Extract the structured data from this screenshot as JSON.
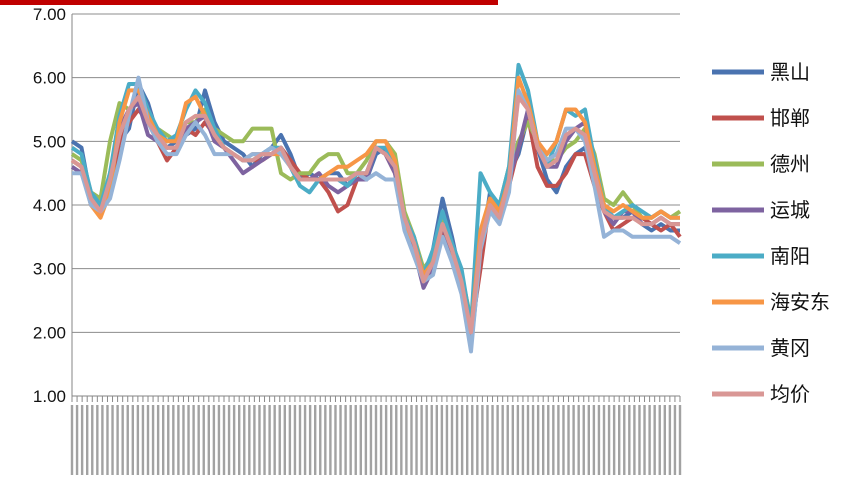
{
  "chart_data": {
    "type": "line",
    "title": "",
    "xlabel": "",
    "ylabel": "",
    "ylim": [
      1,
      7
    ],
    "y_ticks": [
      "1.00",
      "2.00",
      "3.00",
      "4.00",
      "5.00",
      "6.00",
      "7.00"
    ],
    "grid": "horizontal",
    "legend_position": "right",
    "x_tick_labels_note": "dense rotated date labels (illegible)",
    "series": [
      {
        "name": "黑山",
        "color": "#4a73b0",
        "values": [
          5.0,
          4.9,
          4.1,
          3.9,
          4.2,
          5.0,
          5.2,
          5.9,
          5.6,
          5.1,
          4.9,
          5.0,
          5.1,
          5.2,
          5.8,
          5.3,
          5.0,
          4.9,
          4.8,
          4.6,
          4.8,
          4.9,
          5.1,
          4.8,
          4.4,
          4.5,
          4.4,
          4.5,
          4.5,
          4.3,
          4.5,
          4.4,
          4.8,
          4.9,
          4.6,
          3.8,
          3.4,
          2.8,
          3.3,
          4.1,
          3.5,
          2.8,
          1.8,
          3.2,
          4.2,
          3.9,
          4.5,
          4.8,
          5.4,
          4.9,
          4.4,
          4.2,
          4.6,
          4.8,
          4.9,
          4.5,
          4.0,
          3.8,
          3.8,
          3.9,
          3.7,
          3.6,
          3.7,
          3.6,
          3.6
        ]
      },
      {
        "name": "邯郸",
        "color": "#c0504d",
        "values": [
          4.7,
          4.6,
          4.0,
          3.9,
          4.3,
          5.0,
          5.3,
          5.5,
          5.3,
          5.0,
          4.7,
          4.9,
          5.2,
          5.1,
          5.3,
          5.1,
          4.9,
          4.8,
          4.7,
          4.7,
          4.7,
          4.8,
          4.9,
          4.7,
          4.5,
          4.4,
          4.4,
          4.2,
          3.9,
          4.0,
          4.4,
          4.5,
          4.9,
          4.8,
          4.5,
          3.8,
          3.3,
          2.9,
          3.1,
          3.6,
          3.2,
          2.8,
          2.0,
          3.0,
          4.1,
          3.8,
          4.3,
          4.9,
          5.4,
          4.6,
          4.3,
          4.3,
          4.5,
          4.8,
          4.8,
          4.3,
          3.9,
          3.6,
          3.7,
          3.8,
          3.8,
          3.7,
          3.6,
          3.7,
          3.5
        ]
      },
      {
        "name": "德州",
        "color": "#9bbb59",
        "values": [
          4.8,
          4.7,
          4.2,
          4.1,
          5.0,
          5.6,
          5.5,
          5.6,
          5.4,
          5.2,
          5.1,
          5.0,
          5.3,
          5.3,
          5.5,
          5.2,
          5.1,
          5.0,
          5.0,
          5.2,
          5.2,
          5.2,
          4.5,
          4.4,
          4.5,
          4.5,
          4.7,
          4.8,
          4.8,
          4.5,
          4.5,
          4.7,
          5.0,
          5.0,
          4.8,
          3.9,
          3.5,
          3.0,
          3.2,
          3.8,
          3.3,
          2.9,
          2.2,
          3.5,
          4.1,
          4.0,
          4.6,
          5.0,
          5.3,
          5.0,
          4.7,
          4.7,
          4.9,
          5.0,
          5.2,
          4.8,
          4.1,
          4.0,
          4.2,
          4.0,
          3.8,
          3.8,
          3.9,
          3.8,
          3.9
        ]
      },
      {
        "name": "运城",
        "color": "#7e63a0",
        "values": [
          4.6,
          4.5,
          4.1,
          3.9,
          4.5,
          5.2,
          5.5,
          5.6,
          5.1,
          5.0,
          4.9,
          4.9,
          5.2,
          5.3,
          5.4,
          5.0,
          4.9,
          4.7,
          4.5,
          4.6,
          4.7,
          4.8,
          4.9,
          4.6,
          4.4,
          4.4,
          4.5,
          4.3,
          4.2,
          4.3,
          4.4,
          4.4,
          4.9,
          4.8,
          4.5,
          3.7,
          3.3,
          2.7,
          3.0,
          3.7,
          3.2,
          2.7,
          1.9,
          3.3,
          4.0,
          3.8,
          4.4,
          4.9,
          5.5,
          5.0,
          4.6,
          4.6,
          5.0,
          5.2,
          5.3,
          4.5,
          3.9,
          3.7,
          3.9,
          3.9,
          3.7,
          3.7,
          3.8,
          3.7,
          3.7
        ]
      },
      {
        "name": "南阳",
        "color": "#4bacc6",
        "values": [
          4.9,
          4.8,
          4.2,
          4.0,
          4.5,
          5.4,
          5.9,
          5.9,
          5.5,
          5.2,
          5.0,
          5.1,
          5.5,
          5.8,
          5.6,
          5.2,
          4.9,
          4.8,
          4.7,
          4.7,
          4.8,
          4.9,
          4.9,
          4.6,
          4.3,
          4.2,
          4.4,
          4.4,
          4.4,
          4.3,
          4.5,
          4.5,
          4.9,
          4.9,
          4.6,
          3.8,
          3.5,
          2.9,
          3.3,
          3.9,
          3.4,
          3.0,
          2.1,
          4.5,
          4.2,
          4.0,
          4.6,
          6.2,
          5.8,
          5.0,
          4.6,
          5.0,
          5.5,
          5.4,
          5.5,
          4.7,
          4.0,
          3.8,
          3.9,
          4.0,
          3.9,
          3.8,
          3.9,
          3.8,
          3.8
        ]
      },
      {
        "name": "海安东",
        "color": "#f79646",
        "values": [
          4.7,
          4.6,
          4.0,
          3.8,
          4.2,
          5.3,
          5.8,
          5.8,
          5.4,
          5.1,
          5.0,
          5.0,
          5.6,
          5.7,
          5.4,
          5.1,
          4.9,
          4.8,
          4.7,
          4.8,
          4.8,
          4.8,
          4.8,
          4.6,
          4.4,
          4.4,
          4.4,
          4.5,
          4.6,
          4.6,
          4.7,
          4.8,
          5.0,
          5.0,
          4.7,
          3.7,
          3.4,
          2.9,
          3.1,
          3.7,
          3.3,
          2.7,
          2.0,
          3.6,
          4.1,
          3.9,
          4.4,
          6.0,
          5.6,
          5.0,
          4.8,
          5.0,
          5.5,
          5.5,
          5.3,
          4.6,
          4.0,
          3.9,
          4.0,
          3.9,
          3.8,
          3.8,
          3.9,
          3.8,
          3.8
        ]
      },
      {
        "name": "黄冈",
        "color": "#95b3d7",
        "values": [
          4.5,
          4.5,
          4.0,
          3.9,
          4.1,
          4.7,
          5.4,
          6.0,
          5.3,
          5.0,
          4.8,
          4.8,
          5.1,
          5.3,
          5.1,
          4.8,
          4.8,
          4.8,
          4.7,
          4.8,
          4.8,
          4.9,
          4.8,
          4.6,
          4.4,
          4.4,
          4.4,
          4.4,
          4.4,
          4.4,
          4.5,
          4.4,
          4.5,
          4.4,
          4.4,
          3.6,
          3.2,
          2.8,
          2.9,
          3.5,
          3.1,
          2.6,
          1.7,
          3.3,
          3.9,
          3.7,
          4.2,
          5.8,
          5.5,
          4.9,
          4.7,
          4.8,
          5.2,
          5.2,
          5.0,
          4.3,
          3.5,
          3.6,
          3.6,
          3.5,
          3.5,
          3.5,
          3.5,
          3.5,
          3.4
        ]
      },
      {
        "name": "均价",
        "color": "#d99795",
        "values": [
          4.7,
          4.6,
          4.1,
          3.9,
          4.4,
          5.1,
          5.5,
          5.7,
          5.3,
          5.1,
          4.9,
          4.9,
          5.3,
          5.4,
          5.4,
          5.1,
          4.9,
          4.8,
          4.7,
          4.7,
          4.8,
          4.8,
          4.9,
          4.6,
          4.4,
          4.4,
          4.4,
          4.4,
          4.4,
          4.4,
          4.5,
          4.5,
          4.9,
          4.8,
          4.6,
          3.8,
          3.4,
          2.8,
          3.1,
          3.7,
          3.3,
          2.8,
          2.0,
          3.4,
          4.0,
          3.8,
          4.4,
          5.7,
          5.5,
          4.9,
          4.6,
          4.7,
          5.1,
          5.2,
          5.1,
          4.5,
          3.9,
          3.8,
          3.8,
          3.8,
          3.7,
          3.7,
          3.8,
          3.7,
          3.7
        ]
      }
    ]
  }
}
